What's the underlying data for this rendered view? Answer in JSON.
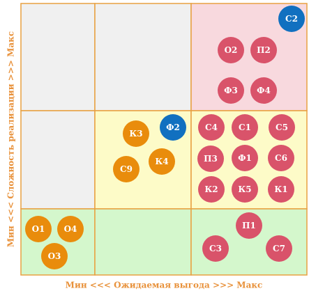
{
  "x_label": "Мин <<< Ожидаемая выгода >>> Макс",
  "y_label": "Мин <<< Сложность реализации >>> Макс",
  "colors": {
    "red": "#d9536a",
    "orange": "#e98c0c",
    "blue": "#1170c0"
  },
  "items": [
    {
      "label": "С2",
      "color": "blue"
    },
    {
      "label": "О2",
      "color": "red"
    },
    {
      "label": "П2",
      "color": "red"
    },
    {
      "label": "Ф3",
      "color": "red"
    },
    {
      "label": "Ф4",
      "color": "red"
    },
    {
      "label": "К3",
      "color": "orange"
    },
    {
      "label": "Ф2",
      "color": "blue"
    },
    {
      "label": "С9",
      "color": "orange"
    },
    {
      "label": "К4",
      "color": "orange"
    },
    {
      "label": "С4",
      "color": "red"
    },
    {
      "label": "С1",
      "color": "red"
    },
    {
      "label": "С5",
      "color": "red"
    },
    {
      "label": "П3",
      "color": "red"
    },
    {
      "label": "Ф1",
      "color": "red"
    },
    {
      "label": "С6",
      "color": "red"
    },
    {
      "label": "К2",
      "color": "red"
    },
    {
      "label": "К5",
      "color": "red"
    },
    {
      "label": "К1",
      "color": "red"
    },
    {
      "label": "О1",
      "color": "orange"
    },
    {
      "label": "О4",
      "color": "orange"
    },
    {
      "label": "О3",
      "color": "orange"
    },
    {
      "label": "П1",
      "color": "red"
    },
    {
      "label": "С3",
      "color": "red"
    },
    {
      "label": "С7",
      "color": "red"
    }
  ]
}
